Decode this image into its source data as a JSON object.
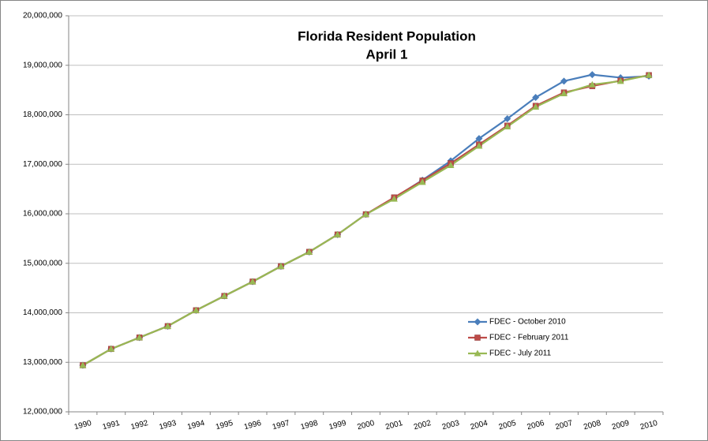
{
  "chart_data": {
    "type": "line",
    "title": "Florida Resident Population",
    "subtitle": "April 1",
    "categories": [
      "1990",
      "1991",
      "1992",
      "1993",
      "1994",
      "1995",
      "1996",
      "1997",
      "1998",
      "1999",
      "2000",
      "2001",
      "2002",
      "2003",
      "2004",
      "2005",
      "2006",
      "2007",
      "2008",
      "2009",
      "2010"
    ],
    "series": [
      {
        "name": "FDEC - October 2010",
        "color": "#4a7ebb",
        "marker": "diamond",
        "values": [
          12940000,
          13270000,
          13500000,
          13730000,
          14050000,
          14340000,
          14630000,
          14940000,
          15230000,
          15580000,
          15990000,
          16320000,
          16680000,
          17070000,
          17520000,
          17920000,
          18350000,
          18680000,
          18810000,
          18750000,
          18780000
        ]
      },
      {
        "name": "FDEC - February 2011",
        "color": "#be4b48",
        "marker": "square",
        "values": [
          12940000,
          13270000,
          13500000,
          13730000,
          14050000,
          14340000,
          14630000,
          14940000,
          15230000,
          15580000,
          15990000,
          16330000,
          16670000,
          17020000,
          17400000,
          17780000,
          18180000,
          18450000,
          18580000,
          18690000,
          18800000
        ]
      },
      {
        "name": "FDEC - July 2011",
        "color": "#98b954",
        "marker": "triangle",
        "values": [
          12940000,
          13270000,
          13500000,
          13730000,
          14050000,
          14340000,
          14630000,
          14940000,
          15230000,
          15580000,
          15990000,
          16300000,
          16640000,
          16980000,
          17370000,
          17760000,
          18160000,
          18430000,
          18610000,
          18680000,
          18800000
        ]
      }
    ],
    "ylim": [
      12000000,
      20000000
    ],
    "yticks": [
      {
        "value": 12000000,
        "label": "12,000,000"
      },
      {
        "value": 13000000,
        "label": "13,000,000"
      },
      {
        "value": 14000000,
        "label": "14,000,000"
      },
      {
        "value": 15000000,
        "label": "15,000,000"
      },
      {
        "value": 16000000,
        "label": "16,000,000"
      },
      {
        "value": 17000000,
        "label": "17,000,000"
      },
      {
        "value": 18000000,
        "label": "18,000,000"
      },
      {
        "value": 19000000,
        "label": "19,000,000"
      },
      {
        "value": 20000000,
        "label": "20,000,000"
      }
    ],
    "grid": true,
    "legend": "lower right"
  }
}
